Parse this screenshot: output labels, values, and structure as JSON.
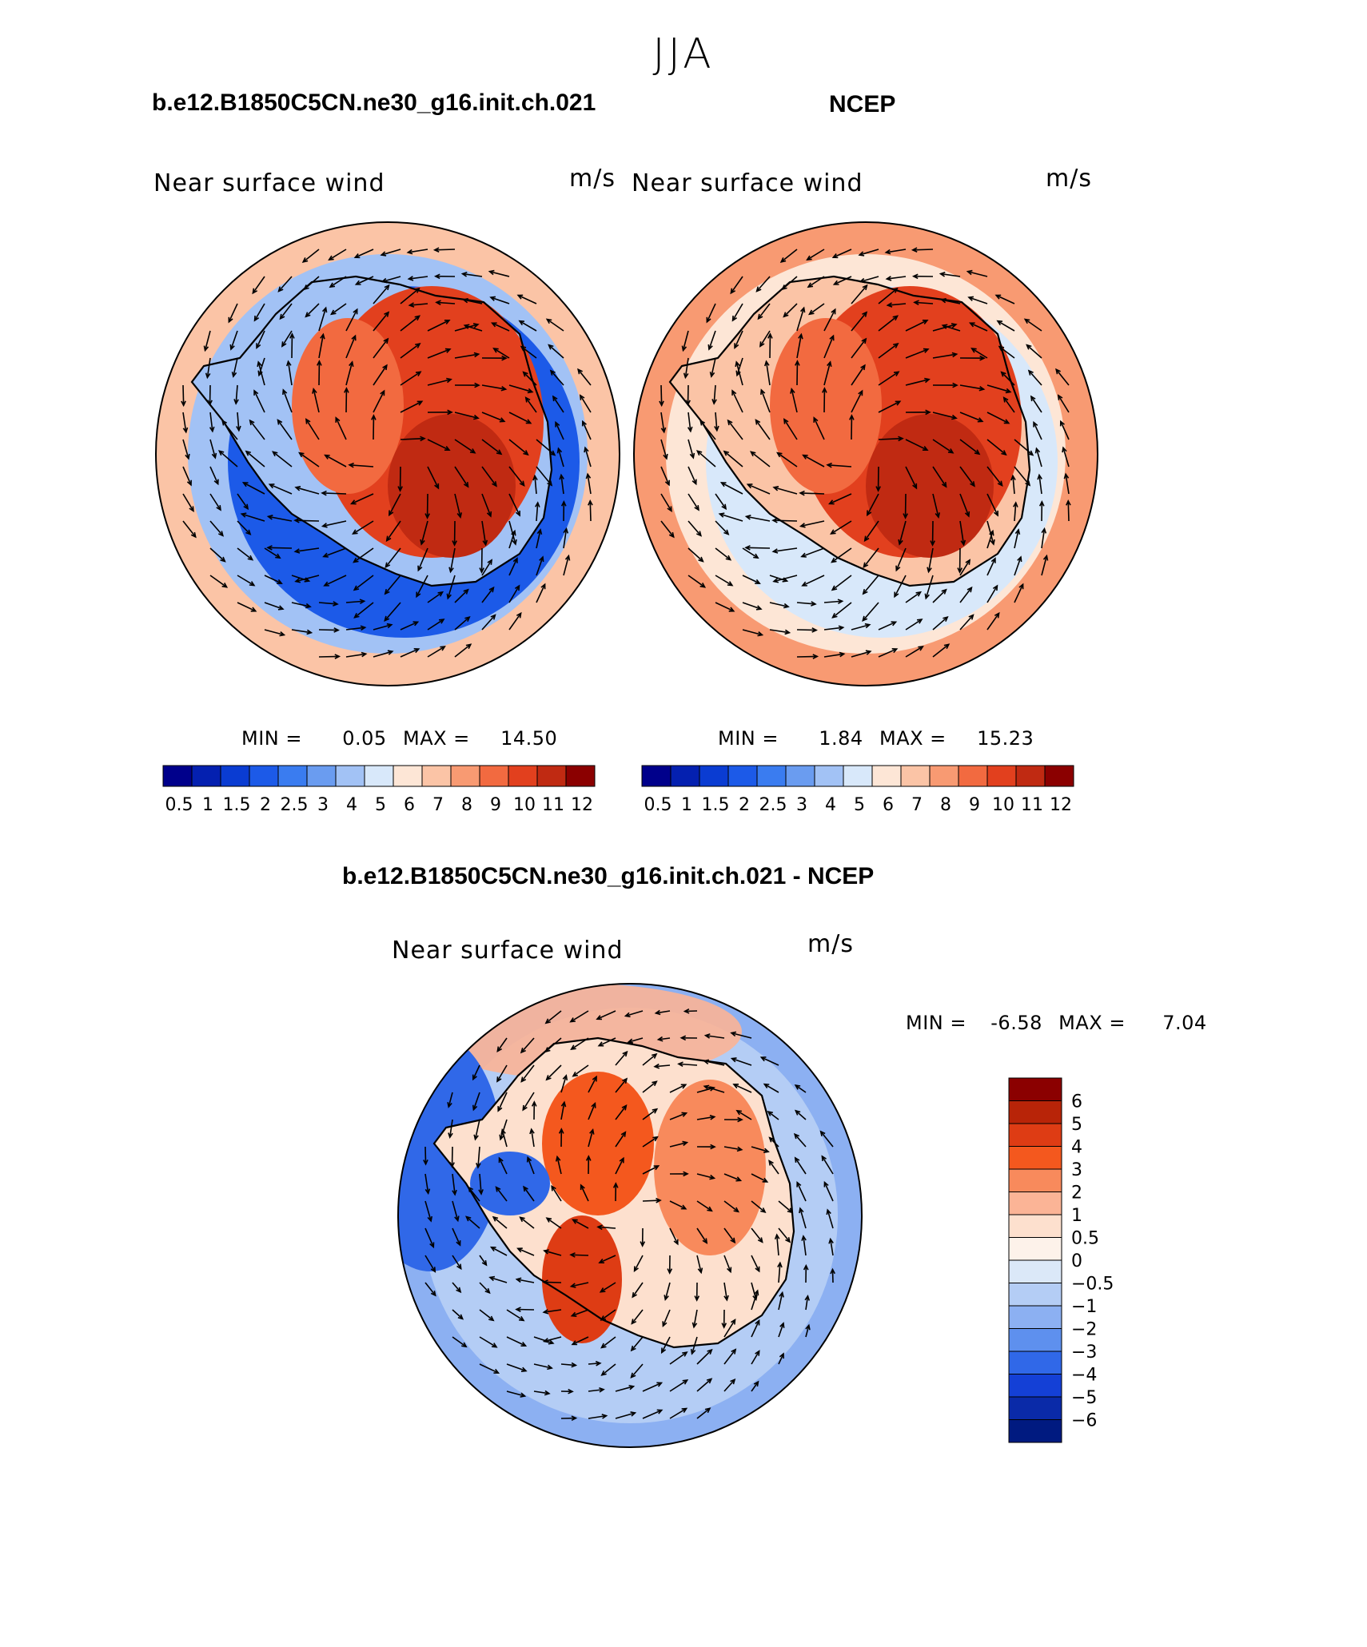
{
  "page_title": "JJA",
  "panels": [
    {
      "title": "b.e12.B1850C5CN.ne30_g16.init.ch.021",
      "left_label": "Near surface wind",
      "right_label": "m/s",
      "min_label": "MIN =",
      "min_value": "0.05",
      "max_label": "MAX =",
      "max_value": "14.50"
    },
    {
      "title": "NCEP",
      "left_label": "Near surface wind",
      "right_label": "m/s",
      "min_label": "MIN =",
      "min_value": "1.84",
      "max_label": "MAX =",
      "max_value": "15.23"
    },
    {
      "title": "b.e12.B1850C5CN.ne30_g16.init.ch.021 - NCEP",
      "left_label": "Near surface wind",
      "right_label": "m/s",
      "min_label": "MIN =",
      "min_value": "-6.58",
      "max_label": "MAX =",
      "max_value": "7.04"
    }
  ],
  "chart_data": [
    {
      "type": "heatmap",
      "projection": "south polar stereographic",
      "title": "b.e12.B1850C5CN.ne30_g16.init.ch.021",
      "field": "Near surface wind speed with wind vectors",
      "units": "m/s",
      "min": 0.05,
      "max": 14.5,
      "levels": [
        0.5,
        1,
        1.5,
        2,
        2.5,
        3,
        4,
        5,
        6,
        7,
        8,
        9,
        10,
        11,
        12
      ],
      "level_labels": [
        "0.5",
        "1",
        "1.5",
        "2",
        "2.5",
        "3",
        "4",
        "5",
        "6",
        "7",
        "8",
        "9",
        "10",
        "11",
        "12"
      ]
    },
    {
      "type": "heatmap",
      "projection": "south polar stereographic",
      "title": "NCEP",
      "field": "Near surface wind speed with wind vectors",
      "units": "m/s",
      "min": 1.84,
      "max": 15.23,
      "levels": [
        0.5,
        1,
        1.5,
        2,
        2.5,
        3,
        4,
        5,
        6,
        7,
        8,
        9,
        10,
        11,
        12
      ],
      "level_labels": [
        "0.5",
        "1",
        "1.5",
        "2",
        "2.5",
        "3",
        "4",
        "5",
        "6",
        "7",
        "8",
        "9",
        "10",
        "11",
        "12"
      ]
    },
    {
      "type": "heatmap",
      "projection": "south polar stereographic",
      "title": "b.e12.B1850C5CN.ne30_g16.init.ch.021 - NCEP",
      "field": "Near surface wind difference with wind vectors",
      "units": "m/s",
      "min": -6.58,
      "max": 7.04,
      "levels": [
        6,
        5,
        4,
        3,
        2,
        1,
        0.5,
        0,
        -0.5,
        -1,
        -2,
        -3,
        -4,
        -5,
        -6
      ],
      "level_labels": [
        "6",
        "5",
        "4",
        "3",
        "2",
        "1",
        "0.5",
        "0",
        "−0.5",
        "−1",
        "−2",
        "−3",
        "−4",
        "−5",
        "−6"
      ]
    }
  ],
  "colors": {
    "speed_scale": [
      "#00008b",
      "#0420b0",
      "#0a3cd2",
      "#1c5ae8",
      "#3a7cf0",
      "#6a9cf0",
      "#a2c2f5",
      "#d8e8fa",
      "#fde6d6",
      "#fbc4a6",
      "#f89a72",
      "#f26a40",
      "#e2401e",
      "#c02a12",
      "#8b0000"
    ],
    "diff_scale": [
      "#8b0000",
      "#b82408",
      "#de3c14",
      "#f4581e",
      "#f88a5c",
      "#fbb496",
      "#fde0ce",
      "#fdf2ea",
      "#dbe8f8",
      "#b4cdf5",
      "#8cb0f2",
      "#5e90ee",
      "#3068e8",
      "#1440d6",
      "#0a2aa8",
      "#001a80"
    ],
    "land_red": "#e2401e",
    "ocean_blue": "#6a9cf0",
    "arrow": "#000000"
  }
}
